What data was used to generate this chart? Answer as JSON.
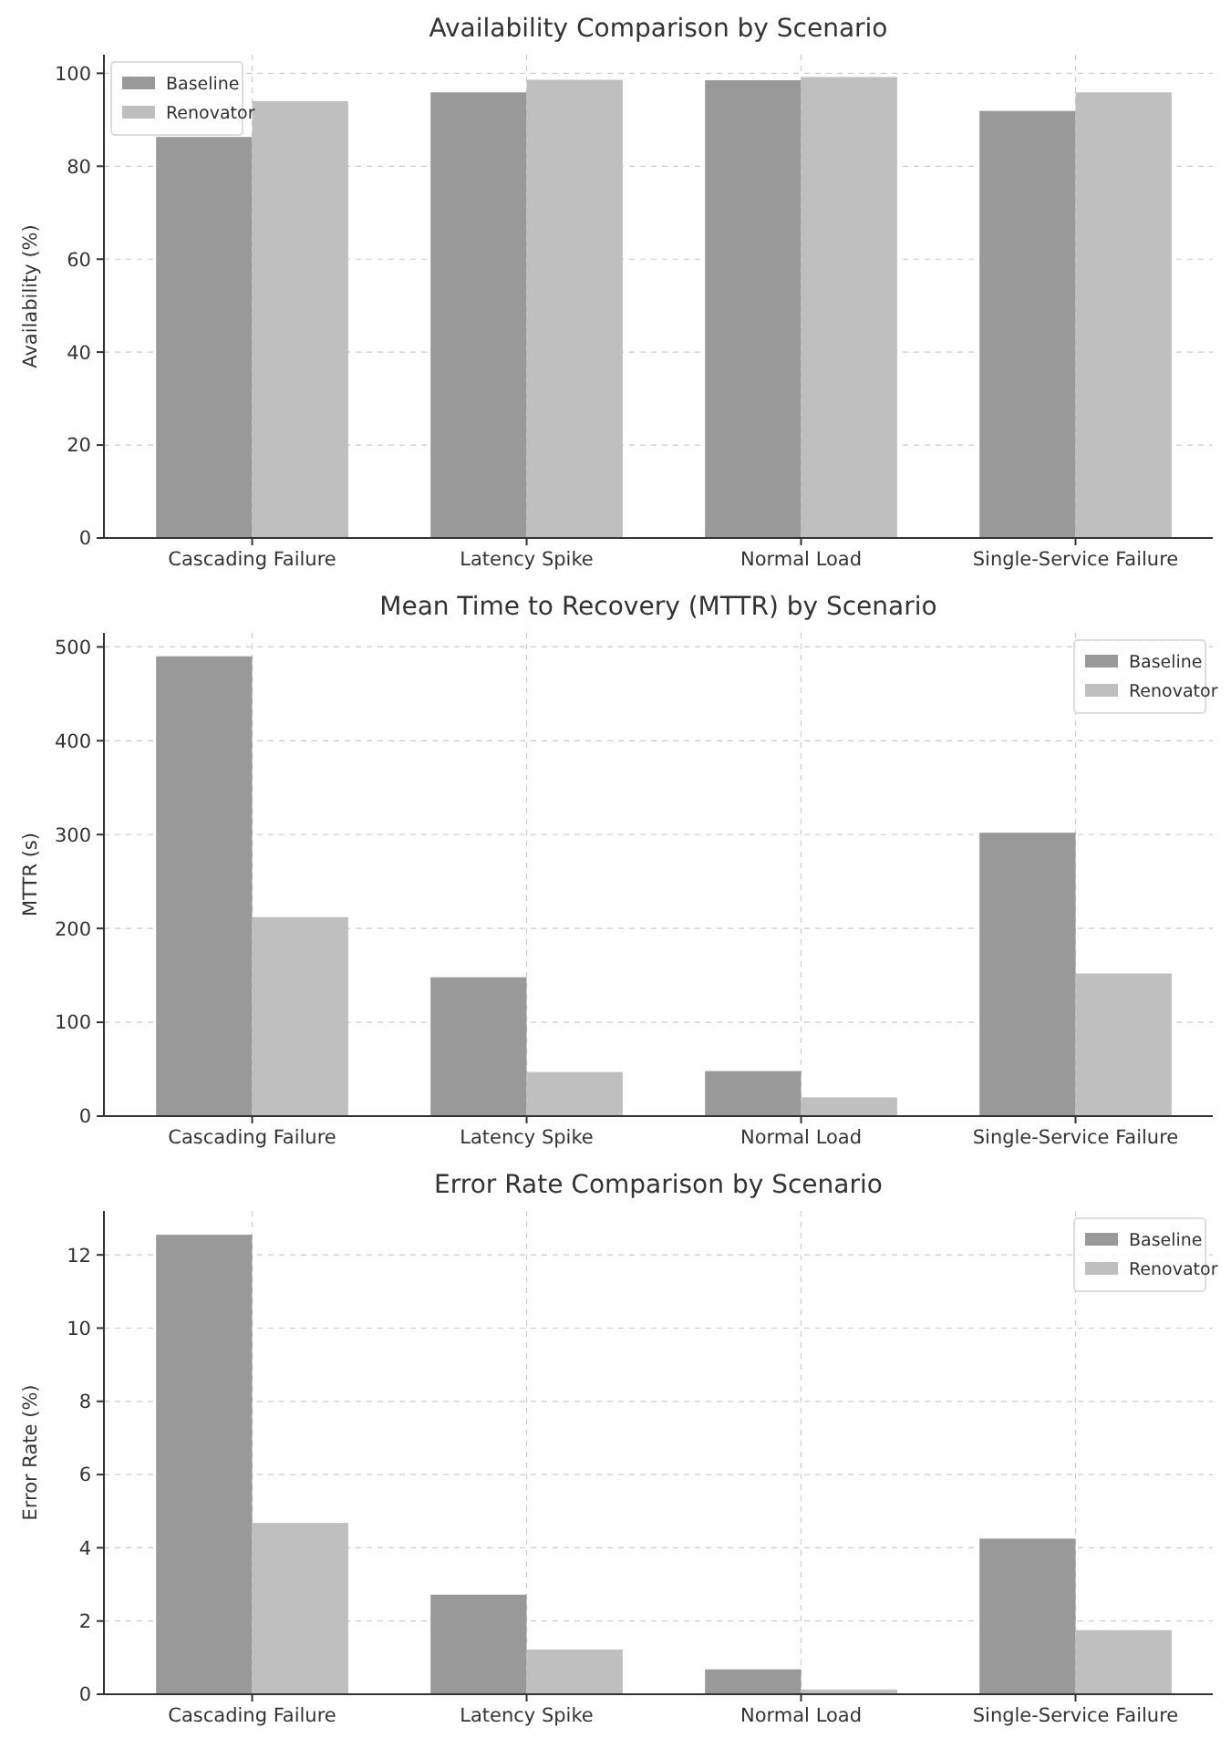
{
  "chart_data": [
    {
      "type": "bar",
      "title": "Availability Comparison by Scenario",
      "ylabel": "Availability (%)",
      "categories": [
        "Cascading Failure",
        "Latency Spike",
        "Normal Load",
        "Single-Service Failure"
      ],
      "series": [
        {
          "name": "Baseline",
          "color": "#999999",
          "values": [
            86.3,
            95.9,
            98.5,
            91.9
          ]
        },
        {
          "name": "Renovator",
          "color": "#bfbfbf",
          "values": [
            94.0,
            98.6,
            99.2,
            95.9
          ]
        }
      ],
      "ylim": [
        0,
        104
      ],
      "yticks": [
        0,
        20,
        40,
        60,
        80,
        100
      ],
      "grid": true,
      "legend": "top left"
    },
    {
      "type": "bar",
      "title": "Mean Time to Recovery (MTTR) by Scenario",
      "ylabel": "MTTR (s)",
      "categories": [
        "Cascading Failure",
        "Latency Spike",
        "Normal Load",
        "Single-Service Failure"
      ],
      "series": [
        {
          "name": "Baseline",
          "color": "#999999",
          "values": [
            490,
            148,
            48,
            302
          ]
        },
        {
          "name": "Renovator",
          "color": "#bfbfbf",
          "values": [
            212,
            47,
            20,
            152
          ]
        }
      ],
      "ylim": [
        0,
        515
      ],
      "yticks": [
        0,
        100,
        200,
        300,
        400,
        500
      ],
      "grid": true,
      "legend": "top right"
    },
    {
      "type": "bar",
      "title": "Error Rate Comparison by Scenario",
      "ylabel": "Error Rate (%)",
      "categories": [
        "Cascading Failure",
        "Latency Spike",
        "Normal Load",
        "Single-Service Failure"
      ],
      "series": [
        {
          "name": "Baseline",
          "color": "#999999",
          "values": [
            12.55,
            2.72,
            0.68,
            4.25
          ]
        },
        {
          "name": "Renovator",
          "color": "#bfbfbf",
          "values": [
            4.68,
            1.22,
            0.13,
            1.75
          ]
        }
      ],
      "ylim": [
        0,
        13.2
      ],
      "yticks": [
        0,
        2,
        4,
        6,
        8,
        10,
        12
      ],
      "grid": true,
      "legend": "top right"
    }
  ]
}
